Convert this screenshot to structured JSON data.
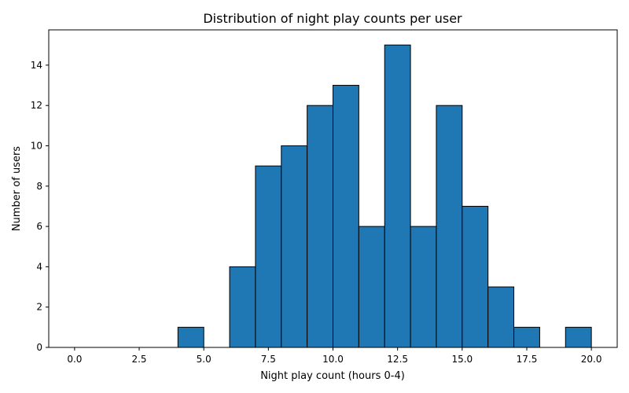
{
  "chart_data": {
    "type": "bar",
    "title": "Distribution of night play counts per user",
    "xlabel": "Night play count (hours 0-4)",
    "ylabel": "Number of users",
    "bin_width": 1,
    "bins": [
      {
        "x0": 0,
        "x1": 1,
        "count": 0
      },
      {
        "x0": 1,
        "x1": 2,
        "count": 0
      },
      {
        "x0": 2,
        "x1": 3,
        "count": 0
      },
      {
        "x0": 3,
        "x1": 4,
        "count": 0
      },
      {
        "x0": 4,
        "x1": 5,
        "count": 1
      },
      {
        "x0": 5,
        "x1": 6,
        "count": 0
      },
      {
        "x0": 6,
        "x1": 7,
        "count": 4
      },
      {
        "x0": 7,
        "x1": 8,
        "count": 9
      },
      {
        "x0": 8,
        "x1": 9,
        "count": 10
      },
      {
        "x0": 9,
        "x1": 10,
        "count": 12
      },
      {
        "x0": 10,
        "x1": 11,
        "count": 13
      },
      {
        "x0": 11,
        "x1": 12,
        "count": 6
      },
      {
        "x0": 12,
        "x1": 13,
        "count": 15
      },
      {
        "x0": 13,
        "x1": 14,
        "count": 6
      },
      {
        "x0": 14,
        "x1": 15,
        "count": 12
      },
      {
        "x0": 15,
        "x1": 16,
        "count": 7
      },
      {
        "x0": 16,
        "x1": 17,
        "count": 3
      },
      {
        "x0": 17,
        "x1": 18,
        "count": 1
      },
      {
        "x0": 18,
        "x1": 19,
        "count": 0
      },
      {
        "x0": 19,
        "x1": 20,
        "count": 1
      }
    ],
    "xlim": [
      -1,
      21
    ],
    "ylim": [
      0,
      15.75
    ],
    "xticks": [
      0.0,
      2.5,
      5.0,
      7.5,
      10.0,
      12.5,
      15.0,
      17.5,
      20.0
    ],
    "xtick_labels": [
      "0.0",
      "2.5",
      "5.0",
      "7.5",
      "10.0",
      "12.5",
      "15.0",
      "17.5",
      "20.0"
    ],
    "yticks": [
      0,
      2,
      4,
      6,
      8,
      10,
      12,
      14
    ],
    "ytick_labels": [
      "0",
      "2",
      "4",
      "6",
      "8",
      "10",
      "12",
      "14"
    ],
    "grid": false,
    "bar_color": "#1f77b4",
    "edge_color": "#000000"
  }
}
